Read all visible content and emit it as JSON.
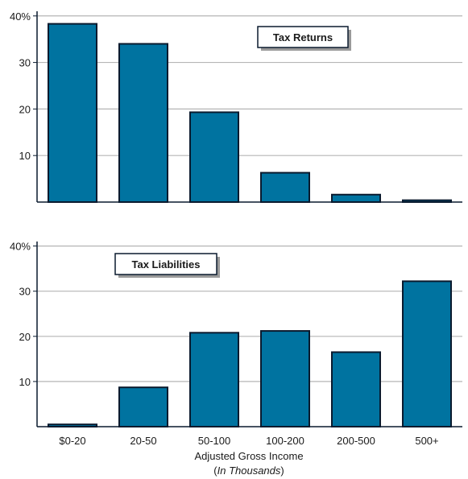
{
  "colors": {
    "bar": "#0073a0",
    "bar_stroke": "#0a1a2e",
    "axis": "#0a1a2e",
    "grid": "#b5b5b5",
    "legend_shadow": "#9a9a9a"
  },
  "x_axis": {
    "title": "Adjusted Gross Income",
    "subtitle_open": "(",
    "subtitle_italic": "In Thousands",
    "subtitle_close": ")"
  },
  "chart_data": [
    {
      "type": "bar",
      "legend": "Tax Returns",
      "legend_placement": "top-right",
      "categories": [
        "$0-20",
        "20-50",
        "50-100",
        "100-200",
        "200-500",
        "500+"
      ],
      "values": [
        38.3,
        34.0,
        19.3,
        6.3,
        1.6,
        0.4
      ],
      "y_ticks": [
        "40%",
        "30",
        "20",
        "10"
      ],
      "ylim": [
        0,
        41
      ],
      "grid": true,
      "xlabel": "",
      "ylabel": ""
    },
    {
      "type": "bar",
      "legend": "Tax Liabilities",
      "legend_placement": "top-left",
      "categories": [
        "$0-20",
        "20-50",
        "50-100",
        "100-200",
        "200-500",
        "500+"
      ],
      "values": [
        0.5,
        8.7,
        20.8,
        21.2,
        16.5,
        32.2
      ],
      "y_ticks": [
        "40%",
        "30",
        "20",
        "10"
      ],
      "ylim": [
        0,
        41
      ],
      "grid": true,
      "xlabel": "Adjusted Gross Income",
      "ylabel": ""
    }
  ]
}
